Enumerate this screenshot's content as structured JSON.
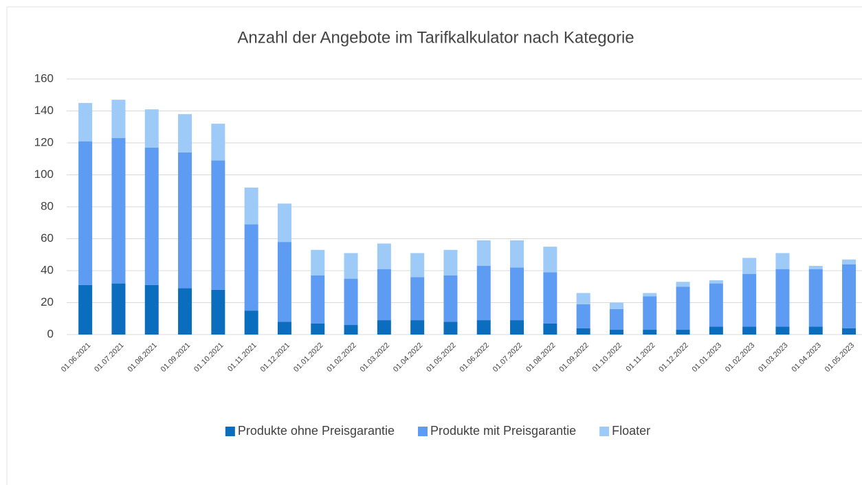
{
  "chart_data": {
    "type": "stacked_bar",
    "title": "Anzahl der Angebote im Tarifkalkulator nach Kategorie",
    "categories": [
      "01.06.2021",
      "01.07.2021",
      "01.08.2021",
      "01.09.2021",
      "01.10.2021",
      "01.11.2021",
      "01.12.2021",
      "01.01.2022",
      "01.02.2022",
      "01.03.2022",
      "01.04.2022",
      "01.05.2022",
      "01.06.2022",
      "01.07.2022",
      "01.08.2022",
      "01.09.2022",
      "01.10.2022",
      "01.11.2022",
      "01.12.2022",
      "01.01.2023",
      "01.02.2023",
      "01.03.2023",
      "01.04.2023",
      "01.05.2023"
    ],
    "series": [
      {
        "name": "Produkte ohne Preisgarantie",
        "color": "#0b6dbd",
        "values": [
          31,
          32,
          31,
          29,
          28,
          15,
          8,
          7,
          6,
          9,
          9,
          8,
          9,
          9,
          7,
          4,
          3,
          3,
          3,
          5,
          5,
          5,
          5,
          4
        ]
      },
      {
        "name": "Produkte mit Preisgarantie",
        "color": "#5e9bf3",
        "values": [
          90,
          91,
          86,
          85,
          81,
          54,
          50,
          30,
          29,
          32,
          27,
          29,
          34,
          33,
          32,
          15,
          13,
          21,
          27,
          27,
          33,
          36,
          36,
          40
        ]
      },
      {
        "name": "Floater",
        "color": "#9dcaf6",
        "values": [
          24,
          24,
          24,
          24,
          23,
          23,
          24,
          16,
          16,
          16,
          15,
          16,
          16,
          17,
          16,
          7,
          4,
          2,
          3,
          2,
          10,
          10,
          2,
          3
        ]
      }
    ],
    "ylim": [
      0,
      160
    ],
    "yticks": [
      0,
      20,
      40,
      60,
      80,
      100,
      120,
      140,
      160
    ],
    "grid": true,
    "legend": "bottom"
  }
}
